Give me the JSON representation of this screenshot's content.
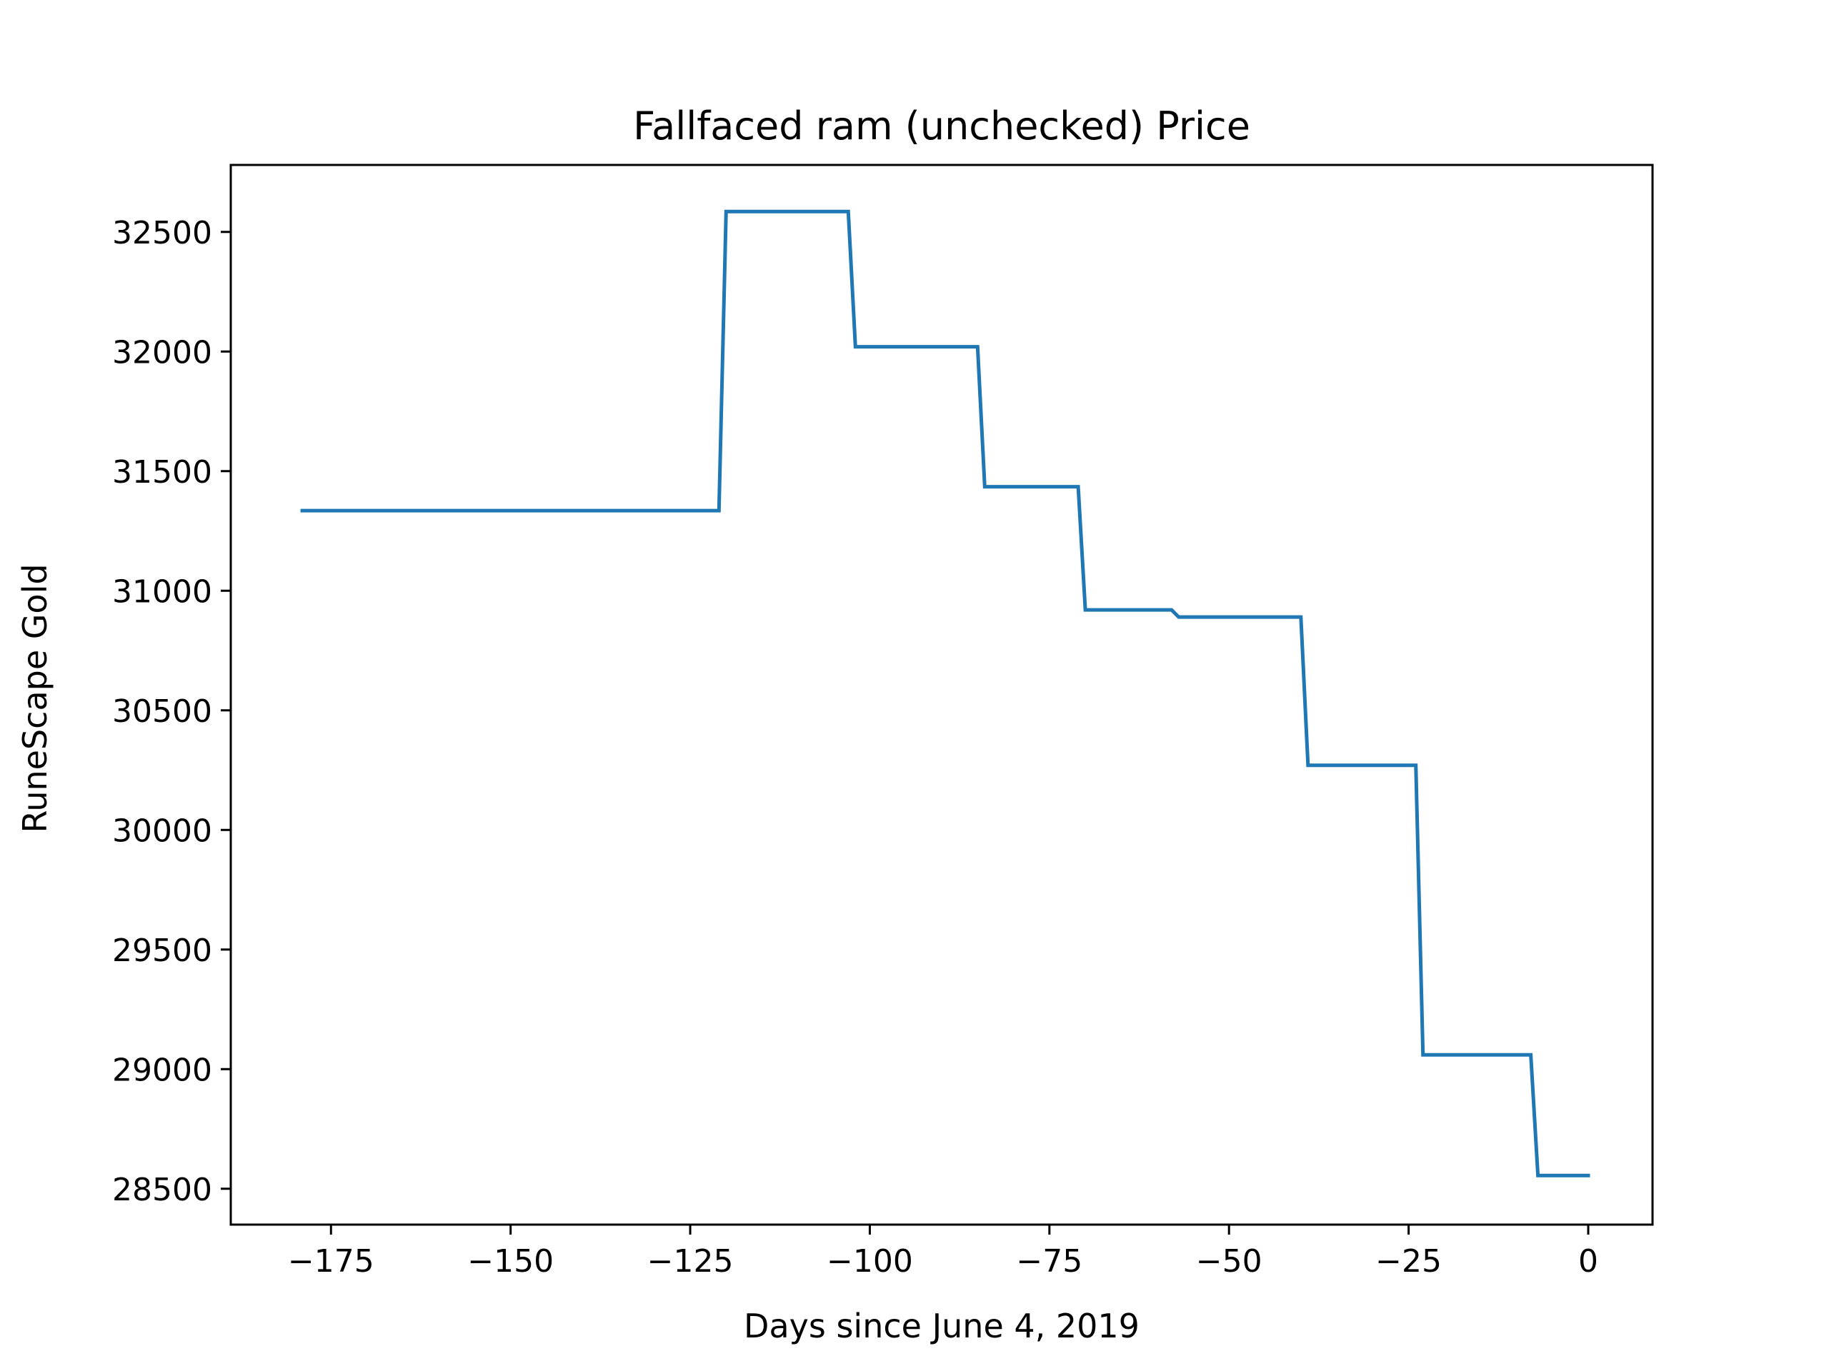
{
  "chart_data": {
    "type": "line",
    "title": "Fallfaced ram (unchecked) Price",
    "xlabel": "Days since June 4, 2019",
    "ylabel": "RuneScape Gold",
    "xlim": [
      -188.95,
      8.95
    ],
    "ylim": [
      28350,
      32780
    ],
    "xticks": [
      -175,
      -150,
      -125,
      -100,
      -75,
      -50,
      -25,
      0
    ],
    "xtick_labels": [
      "−175",
      "−150",
      "−125",
      "−100",
      "−75",
      "−50",
      "−25",
      "0"
    ],
    "yticks": [
      28500,
      29000,
      29500,
      30000,
      30500,
      31000,
      31500,
      32000,
      32500
    ],
    "ytick_labels": [
      "28500",
      "29000",
      "29500",
      "30000",
      "30500",
      "31000",
      "31500",
      "32000",
      "32500"
    ],
    "grid": false,
    "legend": false,
    "series": [
      {
        "color": "#1f77b4",
        "x": [
          -179,
          -121,
          -120,
          -103,
          -102,
          -85,
          -84,
          -71,
          -70,
          -58,
          -57,
          -40,
          -39,
          -24,
          -23,
          -8,
          -7,
          0
        ],
        "y": [
          31335,
          31335,
          32585,
          32585,
          32020,
          32020,
          31435,
          31435,
          30920,
          30920,
          30890,
          30890,
          30270,
          30270,
          29060,
          29060,
          28555,
          28555
        ]
      }
    ]
  }
}
